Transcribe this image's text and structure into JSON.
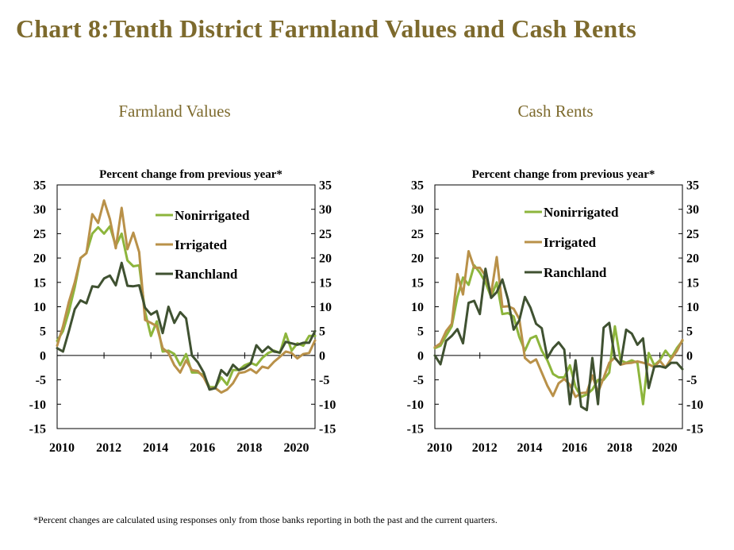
{
  "title": "Chart 8:Tenth District Farmland Values and Cash Rents",
  "footnote": "*Percent changes are calculated using responses only from those banks reporting in both the past and the current quarters.",
  "colors": {
    "title": "#7d6a2d",
    "Nonirrigated": "#8db53c",
    "Irrigated": "#b99149",
    "Ranchland": "#3f5131"
  },
  "chart_data": [
    {
      "type": "line",
      "title": "Farmland Values",
      "ylabel": "Percent change from previous year*",
      "xlim": [
        2010,
        2021
      ],
      "ylim": [
        -15,
        35
      ],
      "yticks": [
        "35",
        "30",
        "25",
        "20",
        "15",
        "10",
        "5",
        "0",
        "-5",
        "-10",
        "-15"
      ],
      "xticks": [
        "2010",
        "2012",
        "2014",
        "2016",
        "2018",
        "2020"
      ],
      "legend_position": "upper-right",
      "series": [
        {
          "name": "Nonirrigated",
          "x": [
            2010,
            2010.25,
            2010.5,
            2010.75,
            2011,
            2011.25,
            2011.5,
            2011.75,
            2012,
            2012.25,
            2012.5,
            2012.75,
            2013,
            2013.25,
            2013.5,
            2013.75,
            2014,
            2014.25,
            2014.5,
            2014.75,
            2015,
            2015.25,
            2015.5,
            2015.75,
            2016,
            2016.25,
            2016.5,
            2016.75,
            2017,
            2017.25,
            2017.5,
            2017.75,
            2018,
            2018.25,
            2018.5,
            2018.75,
            2019,
            2019.25,
            2019.5,
            2019.75,
            2020,
            2020.25,
            2020.5,
            2020.75,
            2021
          ],
          "values": [
            3,
            5,
            9,
            14,
            20,
            21,
            25,
            26.3,
            25,
            26.5,
            22.5,
            25,
            19.5,
            18.3,
            18.5,
            9,
            4,
            7,
            0.8,
            1,
            0.3,
            -2,
            0.3,
            -3.5,
            -3.5,
            -4,
            -6.5,
            -6.5,
            -4.5,
            -6,
            -3,
            -3,
            -2,
            -1.5,
            -2,
            -0.5,
            0.5,
            1,
            0.5,
            4.5,
            1,
            2.5,
            2,
            4,
            4
          ]
        },
        {
          "name": "Irrigated",
          "x": [
            2010,
            2010.25,
            2010.5,
            2010.75,
            2011,
            2011.25,
            2011.5,
            2011.75,
            2012,
            2012.25,
            2012.5,
            2012.75,
            2013,
            2013.25,
            2013.5,
            2013.75,
            2014,
            2014.25,
            2014.5,
            2014.75,
            2015,
            2015.25,
            2015.5,
            2015.75,
            2016,
            2016.25,
            2016.5,
            2016.75,
            2017,
            2017.25,
            2017.5,
            2017.75,
            2018,
            2018.25,
            2018.5,
            2018.75,
            2019,
            2019.25,
            2019.5,
            2019.75,
            2020,
            2020.25,
            2020.5,
            2020.75,
            2021
          ],
          "values": [
            2,
            6,
            11,
            15,
            20,
            21,
            29,
            27.2,
            31.8,
            28,
            22,
            30.3,
            21.8,
            25.2,
            21.2,
            7.3,
            6.7,
            6,
            1.5,
            0.5,
            -2,
            -3.5,
            -1,
            -3,
            -3.2,
            -4.5,
            -6.8,
            -6.7,
            -7.6,
            -7,
            -5.7,
            -3.6,
            -3.4,
            -2.8,
            -3.6,
            -2.3,
            -2.6,
            -1.3,
            -0.3,
            0.8,
            0.5,
            -0.6,
            0.3,
            0.5,
            3.1
          ]
        },
        {
          "name": "Ranchland",
          "x": [
            2010,
            2010.25,
            2010.5,
            2010.75,
            2011,
            2011.25,
            2011.5,
            2011.75,
            2012,
            2012.25,
            2012.5,
            2012.75,
            2013,
            2013.25,
            2013.5,
            2013.75,
            2014,
            2014.25,
            2014.5,
            2014.75,
            2015,
            2015.25,
            2015.5,
            2015.75,
            2016,
            2016.25,
            2016.5,
            2016.75,
            2017,
            2017.25,
            2017.5,
            2017.75,
            2018,
            2018.25,
            2018.5,
            2018.75,
            2019,
            2019.25,
            2019.5,
            2019.75,
            2020,
            2020.25,
            2020.5,
            2020.75,
            2021
          ],
          "values": [
            1.5,
            0.8,
            5,
            9.5,
            11.3,
            10.7,
            14.2,
            14,
            15.8,
            16.4,
            14.4,
            19,
            14.3,
            14.2,
            14.4,
            9.8,
            8.4,
            9.1,
            4.6,
            10,
            6.7,
            8.9,
            7.6,
            0,
            -1.4,
            -3.5,
            -7,
            -6.7,
            -3,
            -4.1,
            -1.9,
            -3,
            -2.6,
            -1.7,
            2.1,
            0.7,
            1.8,
            0.8,
            0.6,
            2.8,
            2.5,
            2.2,
            2.6,
            2.6,
            5
          ]
        }
      ]
    },
    {
      "type": "line",
      "title": "Cash Rents",
      "ylabel": "Percent change from previous year*",
      "xlim": [
        2010,
        2021
      ],
      "ylim": [
        -15,
        35
      ],
      "yticks": [
        "35",
        "30",
        "25",
        "20",
        "15",
        "10",
        "5",
        "0",
        "-5",
        "-10",
        "-15"
      ],
      "xticks": [
        "2010",
        "2012",
        "2014",
        "2016",
        "2018",
        "2020"
      ],
      "legend_position": "upper-right",
      "series": [
        {
          "name": "Nonirrigated",
          "x": [
            2010,
            2010.25,
            2010.5,
            2010.75,
            2011,
            2011.25,
            2011.5,
            2011.75,
            2012,
            2012.25,
            2012.5,
            2012.75,
            2013,
            2013.25,
            2013.5,
            2013.75,
            2014,
            2014.25,
            2014.5,
            2014.75,
            2015,
            2015.25,
            2015.5,
            2015.75,
            2016,
            2016.25,
            2016.5,
            2016.75,
            2017,
            2017.25,
            2017.5,
            2017.75,
            2018,
            2018.25,
            2018.5,
            2018.75,
            2019,
            2019.25,
            2019.5,
            2019.75,
            2020,
            2020.25,
            2020.5,
            2020.75,
            2021
          ],
          "values": [
            1.5,
            2,
            4,
            6,
            12,
            16,
            14.5,
            18.5,
            17,
            15,
            12,
            15,
            8.5,
            8.7,
            8,
            3.8,
            1,
            3.5,
            4,
            1,
            -1,
            -3.8,
            -4.5,
            -4.5,
            -2,
            -6.5,
            -8.5,
            -8,
            -7,
            -5,
            -5,
            -3.5,
            6,
            -1,
            -1.5,
            -1,
            -1.5,
            -10,
            0.5,
            -2,
            -1,
            1,
            -0.5,
            1.5,
            3
          ]
        },
        {
          "name": "Irrigated",
          "x": [
            2010,
            2010.25,
            2010.5,
            2010.75,
            2011,
            2011.25,
            2011.5,
            2011.75,
            2012,
            2012.25,
            2012.5,
            2012.75,
            2013,
            2013.25,
            2013.5,
            2013.75,
            2014,
            2014.25,
            2014.5,
            2014.75,
            2015,
            2015.25,
            2015.5,
            2015.75,
            2016,
            2016.25,
            2016.5,
            2016.75,
            2017,
            2017.25,
            2017.5,
            2017.75,
            2018,
            2018.25,
            2018.5,
            2018.75,
            2019,
            2019.25,
            2019.5,
            2019.75,
            2020,
            2020.25,
            2020.5,
            2020.75,
            2021
          ],
          "values": [
            1.7,
            2.5,
            5,
            6.5,
            16.7,
            12.5,
            21.4,
            18,
            18,
            16.4,
            12.6,
            20.2,
            10,
            10.1,
            9.6,
            7.5,
            -0.5,
            -1.5,
            -0.8,
            -3.5,
            -6.2,
            -8.3,
            -5.7,
            -4.8,
            -6,
            -8.5,
            -7.7,
            -7.6,
            -4.1,
            -7.6,
            -4.6,
            -1.5,
            -0.4,
            -1.9,
            -1.6,
            -1.5,
            -1.2,
            -1.5,
            -1.8,
            -2.4,
            -1.1,
            -2.5,
            -0.7,
            0.9,
            3.2
          ]
        },
        {
          "name": "Ranchland",
          "x": [
            2010,
            2010.25,
            2010.5,
            2010.75,
            2011,
            2011.25,
            2011.5,
            2011.75,
            2012,
            2012.25,
            2012.5,
            2012.75,
            2013,
            2013.25,
            2013.5,
            2013.75,
            2014,
            2014.25,
            2014.5,
            2014.75,
            2015,
            2015.25,
            2015.5,
            2015.75,
            2016,
            2016.25,
            2016.5,
            2016.75,
            2017,
            2017.25,
            2017.5,
            2017.75,
            2018,
            2018.25,
            2018.5,
            2018.75,
            2019,
            2019.25,
            2019.5,
            2019.75,
            2020,
            2020.25,
            2020.5,
            2020.75,
            2021
          ],
          "values": [
            0,
            -1.8,
            3,
            4,
            5.4,
            2.5,
            10.8,
            11.2,
            8.5,
            17.8,
            11.8,
            13,
            15.6,
            11.5,
            5.3,
            7.2,
            12,
            9.8,
            6.5,
            5.6,
            -0.5,
            1.5,
            2.7,
            1.2,
            -10,
            -1,
            -10.5,
            -11.2,
            -0.5,
            -10,
            5.7,
            6.7,
            -0.5,
            -1.8,
            5.3,
            4.5,
            2.2,
            3.5,
            -6.7,
            -2.3,
            -2.2,
            -2.5,
            -1.5,
            -1.5,
            -2.8
          ]
        }
      ]
    }
  ]
}
